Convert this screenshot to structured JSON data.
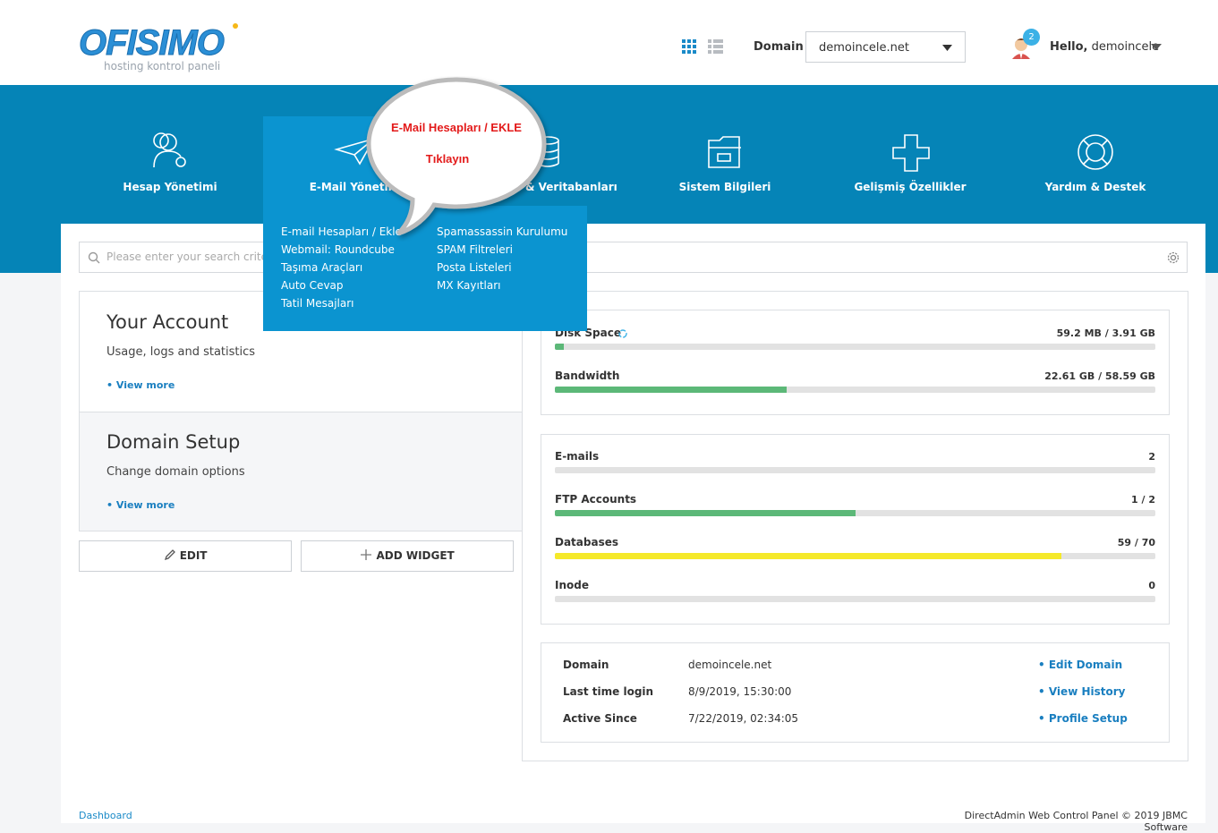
{
  "header": {
    "logo": "OFISIMO",
    "logo_sub": "hosting kontrol paneli",
    "domain_label": "Domain",
    "domain_value": "demoincele.net",
    "notifications": 2,
    "greeting": "Hello,",
    "user": "demoincele"
  },
  "nav": [
    {
      "label": "Hesap Yönetimi"
    },
    {
      "label": "E-Mail Yönetimi"
    },
    {
      "label": "& Veritabanları"
    },
    {
      "label": "Sistem Bilgileri"
    },
    {
      "label": "Gelişmiş Özellikler"
    },
    {
      "label": "Yardım & Destek"
    }
  ],
  "dropdown": {
    "col1": [
      "E-mail Hesapları / Ekle",
      "Webmail: Roundcube",
      "Taşıma Araçları",
      "Auto Cevap",
      "Tatil Mesajları"
    ],
    "col2": [
      "Spamassassin Kurulumu",
      "SPAM Filtreleri",
      "Posta Listeleri",
      "MX Kayıtları"
    ]
  },
  "callout": {
    "title": "E-Mail Hesapları / EKLE",
    "text": "Tıklayın"
  },
  "search": {
    "placeholder": "Please enter your search criteria"
  },
  "widgets": [
    {
      "title": "Your Account",
      "text": "Usage, logs and statistics",
      "link": "View more"
    },
    {
      "title": "Domain Setup",
      "text": "Change domain options",
      "link": "View more"
    }
  ],
  "buttons": [
    "EDIT",
    "ADD WIDGET"
  ],
  "usage": [
    {
      "label": "Disk Space",
      "value": "59.2 MB / 3.91 GB",
      "percent": 1.5,
      "color": "#5cb878"
    },
    {
      "label": "Bandwidth",
      "value": "22.61 GB / 58.59 GB",
      "percent": 38.6,
      "color": "#5cb878"
    }
  ],
  "counts": [
    {
      "label": "E-mails",
      "value": "2",
      "percent": 0,
      "color": "#5cb878"
    },
    {
      "label": "FTP Accounts",
      "value": "1 / 2",
      "percent": 50,
      "color": "#5cb878"
    },
    {
      "label": "Databases",
      "value": "59 / 70",
      "percent": 84.3,
      "color": "#f5e92a"
    },
    {
      "label": "Inode",
      "value": "0",
      "percent": 0,
      "color": "#5cb878"
    }
  ],
  "info": [
    {
      "label": "Domain",
      "value": "demoincele.net",
      "link": "Edit Domain"
    },
    {
      "label": "Last time login",
      "value": "8/9/2019, 15:30:00",
      "link": "View History"
    },
    {
      "label": "Active Since",
      "value": "7/22/2019, 02:34:05",
      "link": "Profile Setup"
    }
  ],
  "footer": {
    "left": "Dashboard",
    "right": "DirectAdmin Web Control Panel © 2019 JBMC Software"
  }
}
